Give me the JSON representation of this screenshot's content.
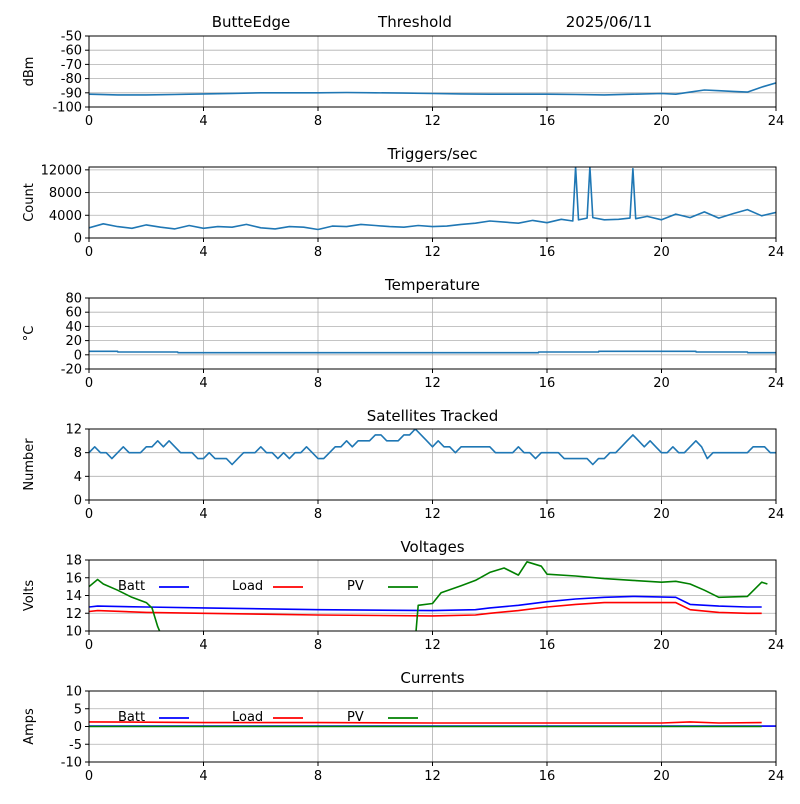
{
  "header": {
    "station": "ButteEdge",
    "subtitle": "Threshold",
    "date": "2025/06/11"
  },
  "chart_data": [
    {
      "type": "line",
      "title": "",
      "xlabel": "",
      "ylabel": "dBm",
      "xlim": [
        0,
        24
      ],
      "ylim": [
        -100,
        -50
      ],
      "xticks": [
        0,
        4,
        8,
        12,
        16,
        20,
        24
      ],
      "yticks": [
        -100,
        -90,
        -80,
        -70,
        -60,
        -50
      ],
      "grid": true,
      "series": [
        {
          "color": "#1f77b4",
          "x": [
            0,
            1,
            2,
            3,
            4,
            5,
            6,
            7,
            8,
            9,
            10,
            11,
            12,
            13,
            14,
            15,
            16,
            17,
            18,
            19,
            20,
            20.5,
            21,
            21.5,
            22,
            22.5,
            23,
            23.5,
            24
          ],
          "y": [
            -91,
            -91.5,
            -91.5,
            -91.2,
            -90.8,
            -90.4,
            -90,
            -90,
            -90,
            -89.8,
            -90,
            -90.2,
            -90.5,
            -90.8,
            -91,
            -91,
            -91,
            -91.2,
            -91.5,
            -91,
            -90.5,
            -91,
            -89.5,
            -88,
            -88.5,
            -89,
            -89.5,
            -86,
            -83
          ]
        }
      ]
    },
    {
      "type": "line",
      "title": "Triggers/sec",
      "xlabel": "",
      "ylabel": "Count",
      "xlim": [
        0,
        24
      ],
      "ylim": [
        0,
        12500
      ],
      "xticks": [
        0,
        4,
        8,
        12,
        16,
        20,
        24
      ],
      "yticks": [
        0,
        4000,
        8000,
        12000
      ],
      "grid": true,
      "series": [
        {
          "color": "#1f77b4",
          "x": [
            0,
            0.5,
            1,
            1.5,
            2,
            2.5,
            3,
            3.5,
            4,
            4.5,
            5,
            5.5,
            6,
            6.5,
            7,
            7.5,
            8,
            8.5,
            9,
            9.5,
            10,
            10.5,
            11,
            11.5,
            12,
            12.5,
            13,
            13.5,
            14,
            14.5,
            15,
            15.5,
            16,
            16.5,
            16.9,
            17,
            17.1,
            17.4,
            17.5,
            17.6,
            18,
            18.5,
            18.9,
            19,
            19.1,
            19.5,
            20,
            20.5,
            21,
            21.5,
            22,
            22.5,
            23,
            23.5,
            24
          ],
          "y": [
            1800,
            2500,
            2000,
            1700,
            2300,
            1900,
            1600,
            2200,
            1700,
            2000,
            1900,
            2400,
            1800,
            1600,
            2000,
            1900,
            1500,
            2100,
            2000,
            2400,
            2200,
            2000,
            1900,
            2200,
            2000,
            2100,
            2400,
            2600,
            3000,
            2800,
            2600,
            3100,
            2700,
            3300,
            3000,
            12500,
            3200,
            3500,
            12500,
            3600,
            3200,
            3300,
            3500,
            12200,
            3400,
            3800,
            3200,
            4200,
            3600,
            4600,
            3500,
            4300,
            5000,
            3900,
            4500
          ]
        }
      ]
    },
    {
      "type": "line",
      "title": "Temperature",
      "xlabel": "",
      "ylabel": "°C",
      "xlim": [
        0,
        24
      ],
      "ylim": [
        -20,
        80
      ],
      "xticks": [
        0,
        4,
        8,
        12,
        16,
        20,
        24
      ],
      "yticks": [
        -20,
        0,
        20,
        40,
        60,
        80
      ],
      "grid": true,
      "series": [
        {
          "color": "#1f77b4",
          "x": [
            0,
            1,
            1.01,
            3.1,
            3.11,
            15.7,
            15.71,
            17.8,
            17.81,
            21.2,
            21.21,
            23,
            23.01,
            24
          ],
          "y": [
            5,
            5,
            4,
            4,
            3,
            3,
            4,
            4,
            5,
            5,
            4,
            4,
            3,
            3
          ]
        }
      ]
    },
    {
      "type": "line",
      "title": "Satellites Tracked",
      "xlabel": "",
      "ylabel": "Number",
      "xlim": [
        0,
        24
      ],
      "ylim": [
        0,
        12
      ],
      "xticks": [
        0,
        4,
        8,
        12,
        16,
        20,
        24
      ],
      "yticks": [
        0,
        4,
        8,
        12
      ],
      "grid": true,
      "series": [
        {
          "color": "#1f77b4",
          "x": [
            0,
            0.2,
            0.4,
            0.6,
            0.8,
            1.0,
            1.2,
            1.4,
            1.6,
            1.8,
            2.0,
            2.2,
            2.4,
            2.6,
            2.8,
            3.0,
            3.2,
            3.4,
            3.6,
            3.8,
            4.0,
            4.2,
            4.4,
            4.6,
            4.8,
            5.0,
            5.2,
            5.4,
            5.6,
            5.8,
            6.0,
            6.2,
            6.4,
            6.6,
            6.8,
            7.0,
            7.2,
            7.4,
            7.6,
            7.8,
            8.0,
            8.2,
            8.4,
            8.6,
            8.8,
            9.0,
            9.2,
            9.4,
            9.6,
            9.8,
            10.0,
            10.2,
            10.4,
            10.6,
            10.8,
            11.0,
            11.2,
            11.4,
            11.6,
            11.8,
            12.0,
            12.2,
            12.4,
            12.6,
            12.8,
            13.0,
            13.2,
            13.4,
            13.6,
            13.8,
            14.0,
            14.2,
            14.4,
            14.6,
            14.8,
            15.0,
            15.2,
            15.4,
            15.6,
            15.8,
            16.0,
            16.2,
            16.4,
            16.6,
            16.8,
            17.0,
            17.2,
            17.4,
            17.6,
            17.8,
            18.0,
            18.2,
            18.4,
            18.6,
            18.8,
            19.0,
            19.2,
            19.4,
            19.6,
            19.8,
            20.0,
            20.2,
            20.4,
            20.6,
            20.8,
            21.0,
            21.2,
            21.4,
            21.6,
            21.8,
            22.0,
            22.2,
            22.4,
            22.6,
            22.8,
            23.0,
            23.2,
            23.4,
            23.6,
            23.8,
            24.0
          ],
          "y": [
            8,
            9,
            8,
            8,
            7,
            8,
            9,
            8,
            8,
            8,
            9,
            9,
            10,
            9,
            10,
            9,
            8,
            8,
            8,
            7,
            7,
            8,
            7,
            7,
            7,
            6,
            7,
            8,
            8,
            8,
            9,
            8,
            8,
            7,
            8,
            7,
            8,
            8,
            9,
            8,
            7,
            7,
            8,
            9,
            9,
            10,
            9,
            10,
            10,
            10,
            11,
            11,
            10,
            10,
            10,
            11,
            11,
            12,
            11,
            10,
            9,
            10,
            9,
            9,
            8,
            9,
            9,
            9,
            9,
            9,
            9,
            8,
            8,
            8,
            8,
            9,
            8,
            8,
            7,
            8,
            8,
            8,
            8,
            7,
            7,
            7,
            7,
            7,
            6,
            7,
            7,
            8,
            8,
            9,
            10,
            11,
            10,
            9,
            10,
            9,
            8,
            8,
            9,
            8,
            8,
            9,
            10,
            9,
            7,
            8,
            8,
            8,
            8,
            8,
            8,
            8,
            9,
            9,
            9,
            8,
            8
          ]
        }
      ]
    },
    {
      "type": "line",
      "title": "Voltages",
      "xlabel": "",
      "ylabel": "Volts",
      "xlim": [
        0,
        24
      ],
      "ylim": [
        10,
        18
      ],
      "xticks": [
        0,
        4,
        8,
        12,
        16,
        20,
        24
      ],
      "yticks": [
        10,
        12,
        14,
        16,
        18
      ],
      "grid": true,
      "legend": "top-left",
      "series": [
        {
          "name": "Batt",
          "color": "#0000ff",
          "x": [
            0,
            0.3,
            2,
            4,
            8,
            12,
            13.5,
            14,
            15,
            16,
            17,
            18,
            19,
            20.5,
            21,
            22,
            23,
            23.5
          ],
          "y": [
            12.7,
            12.8,
            12.7,
            12.6,
            12.4,
            12.3,
            12.4,
            12.6,
            12.9,
            13.3,
            13.6,
            13.8,
            13.9,
            13.8,
            13,
            12.8,
            12.7,
            12.7
          ]
        },
        {
          "name": "Load",
          "color": "#ff0000",
          "x": [
            0,
            0.3,
            2,
            4,
            8,
            12,
            13.5,
            14,
            15,
            16,
            17,
            18,
            19,
            20.5,
            21,
            22,
            23,
            23.5
          ],
          "y": [
            12.2,
            12.3,
            12.1,
            12.0,
            11.8,
            11.7,
            11.8,
            12.0,
            12.3,
            12.7,
            13.0,
            13.2,
            13.2,
            13.2,
            12.4,
            12.1,
            12.0,
            12.0
          ],
          "legend_color": "#ff0000"
        },
        {
          "name": "PV",
          "color": "#008000",
          "x": [
            0,
            0.3,
            0.5,
            1,
            1.5,
            2,
            2.2,
            2.4,
            2.6,
            11.4,
            11.5,
            12,
            12.3,
            13,
            13.5,
            14,
            14.5,
            15,
            15.3,
            15.8,
            16,
            17,
            18,
            19,
            20,
            20.5,
            21,
            21.5,
            22,
            23,
            23.5,
            23.7
          ],
          "y": [
            15,
            15.8,
            15.3,
            14.6,
            13.8,
            13.2,
            12.6,
            10.5,
            9,
            9,
            12.9,
            13.1,
            14.3,
            15.1,
            15.7,
            16.6,
            17.1,
            16.3,
            17.8,
            17.3,
            16.4,
            16.2,
            15.9,
            15.7,
            15.5,
            15.6,
            15.3,
            14.6,
            13.8,
            13.9,
            15.5,
            15.3
          ]
        }
      ]
    },
    {
      "type": "line",
      "title": "Currents",
      "xlabel": "",
      "ylabel": "Amps",
      "xlim": [
        0,
        24
      ],
      "ylim": [
        -10,
        10
      ],
      "xticks": [
        0,
        4,
        8,
        12,
        16,
        20,
        24
      ],
      "yticks": [
        -10,
        -5,
        0,
        5,
        10
      ],
      "grid": true,
      "legend": "top-left",
      "series": [
        {
          "name": "Batt",
          "color": "#0000ff",
          "x": [
            0,
            24
          ],
          "y": [
            0.1,
            0.1
          ]
        },
        {
          "name": "Load",
          "color": "#ff0000",
          "x": [
            0,
            2,
            4,
            8,
            12,
            16,
            20,
            21,
            22,
            23.5
          ],
          "y": [
            1.3,
            1.2,
            1.1,
            1.1,
            1.0,
            1.0,
            1.0,
            1.3,
            1.0,
            1.1
          ]
        },
        {
          "name": "PV",
          "color": "#008000",
          "x": [
            0,
            23.5
          ],
          "y": [
            0,
            0
          ]
        }
      ]
    }
  ]
}
